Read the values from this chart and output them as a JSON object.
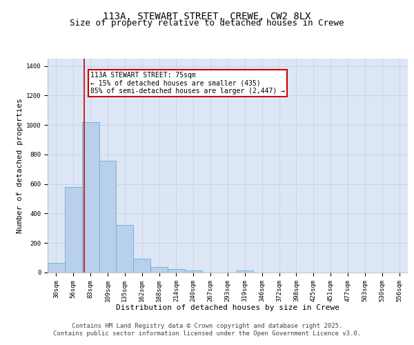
{
  "title_line1": "113A, STEWART STREET, CREWE, CW2 8LX",
  "title_line2": "Size of property relative to detached houses in Crewe",
  "xlabel": "Distribution of detached houses by size in Crewe",
  "ylabel": "Number of detached properties",
  "categories": [
    "30sqm",
    "56sqm",
    "83sqm",
    "109sqm",
    "135sqm",
    "162sqm",
    "188sqm",
    "214sqm",
    "240sqm",
    "267sqm",
    "293sqm",
    "319sqm",
    "346sqm",
    "372sqm",
    "398sqm",
    "425sqm",
    "451sqm",
    "477sqm",
    "503sqm",
    "530sqm",
    "556sqm"
  ],
  "values": [
    65,
    580,
    1020,
    760,
    325,
    95,
    38,
    25,
    15,
    0,
    0,
    15,
    0,
    0,
    0,
    0,
    0,
    0,
    0,
    0,
    0
  ],
  "bar_color": "#b8d0eb",
  "bar_edge_color": "#6baed6",
  "grid_color": "#c8d4e8",
  "background_color": "#dce6f5",
  "annotation_text_line1": "113A STEWART STREET: 75sqm",
  "annotation_text_line2": "← 15% of detached houses are smaller (435)",
  "annotation_text_line3": "85% of semi-detached houses are larger (2,447) →",
  "annotation_box_color": "#cc0000",
  "vline_color": "#cc0000",
  "vline_x": 1.62,
  "ylim": [
    0,
    1450
  ],
  "yticks": [
    0,
    200,
    400,
    600,
    800,
    1000,
    1200,
    1400
  ],
  "footer_text": "Contains HM Land Registry data © Crown copyright and database right 2025.\nContains public sector information licensed under the Open Government Licence v3.0.",
  "title_fontsize": 10,
  "subtitle_fontsize": 9,
  "axis_label_fontsize": 8,
  "tick_fontsize": 6.5,
  "annotation_fontsize": 7,
  "footer_fontsize": 6.5
}
